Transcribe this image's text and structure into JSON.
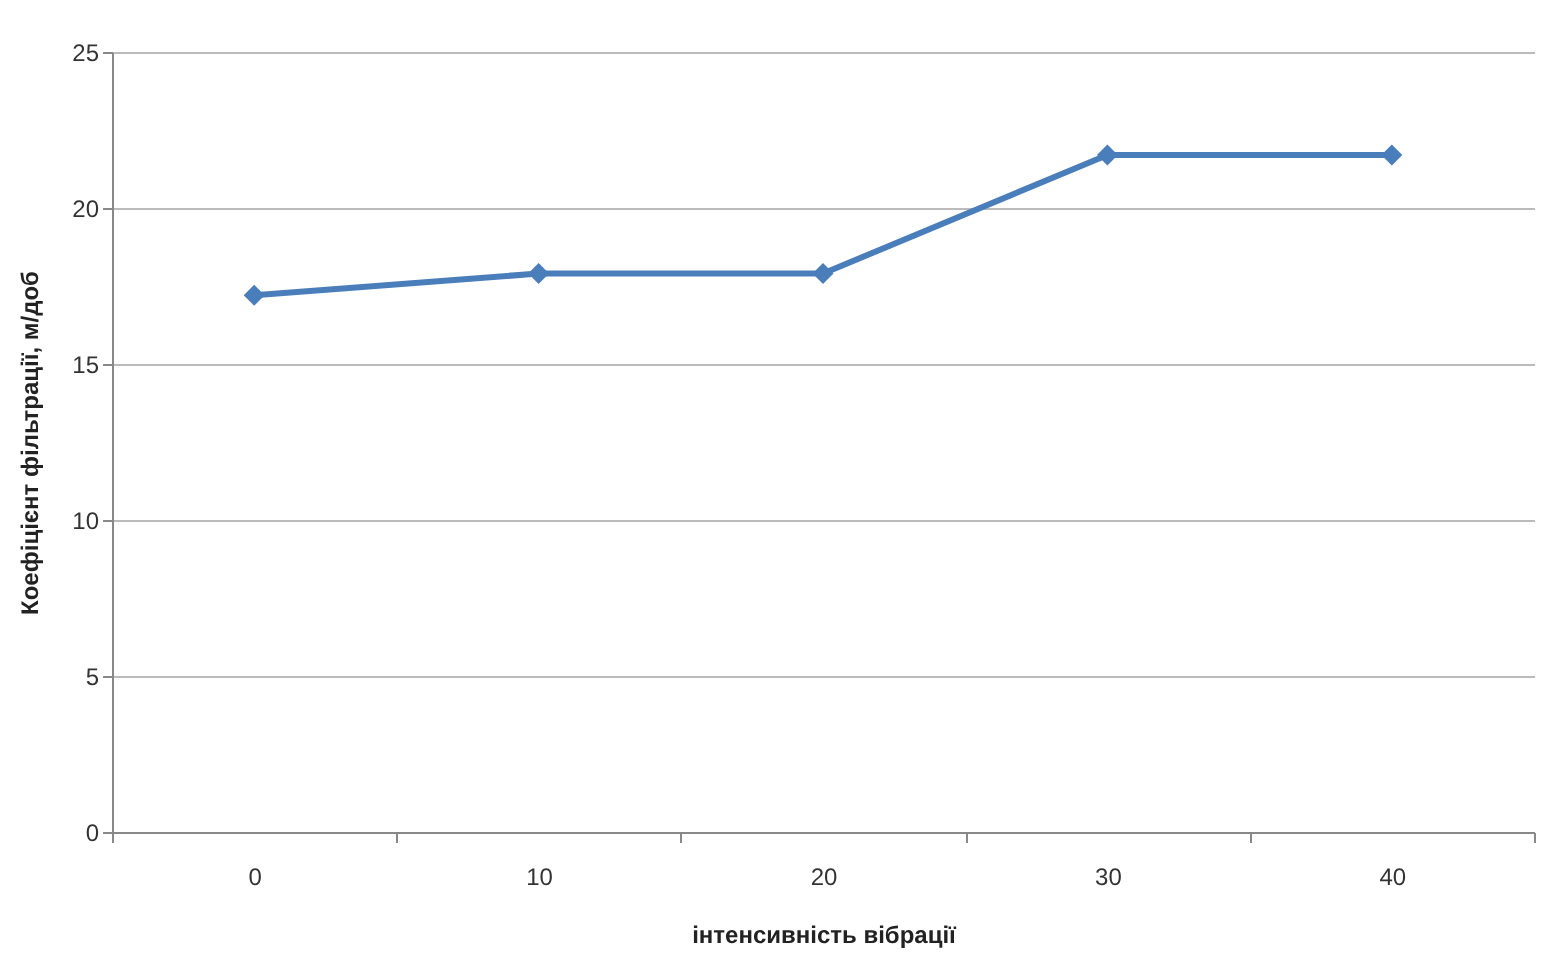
{
  "chart_data": {
    "type": "line",
    "xlabel": "інтенсивність вібрації",
    "ylabel": "Коефіцієнт фільтрації, м/доб",
    "categories": [
      "0",
      "10",
      "20",
      "30",
      "40"
    ],
    "series": [
      {
        "color": "#4a7ebb",
        "values": [
          17.2,
          17.9,
          17.9,
          21.7,
          21.7
        ]
      }
    ],
    "ylim": [
      0,
      25
    ],
    "yticks": [
      0,
      5,
      10,
      15,
      20,
      25
    ],
    "grid": "y",
    "marker": "diamond",
    "line_style": "solid",
    "legend": false
  }
}
